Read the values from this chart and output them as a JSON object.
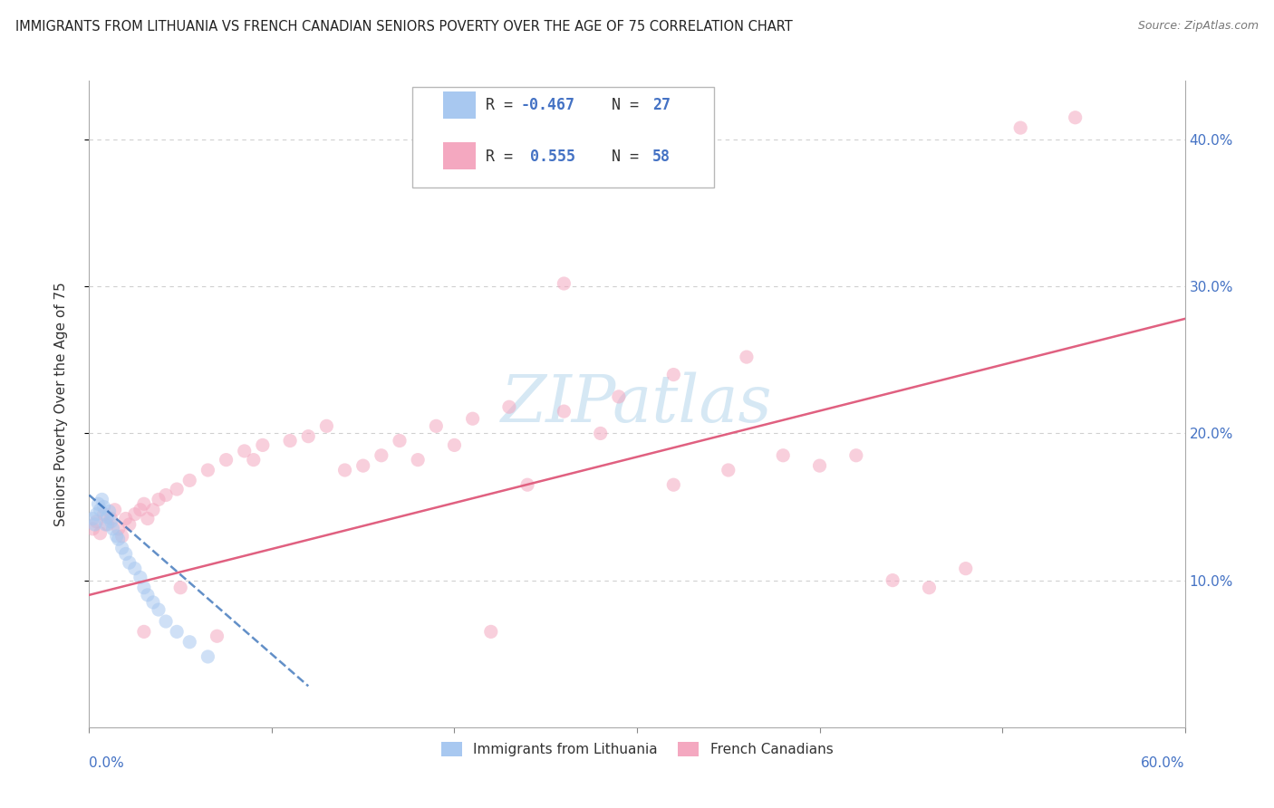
{
  "title": "IMMIGRANTS FROM LITHUANIA VS FRENCH CANADIAN SENIORS POVERTY OVER THE AGE OF 75 CORRELATION CHART",
  "source": "Source: ZipAtlas.com",
  "ylabel": "Seniors Poverty Over the Age of 75",
  "xmin": 0.0,
  "xmax": 0.6,
  "ymin": 0.0,
  "ymax": 0.44,
  "legend1_color": "#a8c8f0",
  "legend2_color": "#f4a8c0",
  "legend1_label": "R = -0.467  N = 27",
  "legend2_label": "R =  0.555  N = 58",
  "blue_scatter_x": [
    0.002,
    0.003,
    0.004,
    0.005,
    0.006,
    0.007,
    0.008,
    0.009,
    0.01,
    0.011,
    0.012,
    0.013,
    0.015,
    0.016,
    0.018,
    0.02,
    0.022,
    0.025,
    0.028,
    0.03,
    0.032,
    0.035,
    0.038,
    0.042,
    0.048,
    0.055,
    0.065
  ],
  "blue_scatter_y": [
    0.142,
    0.138,
    0.145,
    0.152,
    0.148,
    0.155,
    0.15,
    0.138,
    0.143,
    0.147,
    0.14,
    0.135,
    0.13,
    0.128,
    0.122,
    0.118,
    0.112,
    0.108,
    0.102,
    0.095,
    0.09,
    0.085,
    0.08,
    0.072,
    0.065,
    0.058,
    0.048
  ],
  "pink_scatter_x": [
    0.002,
    0.004,
    0.006,
    0.008,
    0.01,
    0.012,
    0.014,
    0.016,
    0.018,
    0.02,
    0.022,
    0.025,
    0.028,
    0.03,
    0.032,
    0.035,
    0.038,
    0.042,
    0.048,
    0.055,
    0.065,
    0.075,
    0.085,
    0.095,
    0.11,
    0.13,
    0.15,
    0.17,
    0.19,
    0.21,
    0.23,
    0.26,
    0.29,
    0.32,
    0.35,
    0.38,
    0.42,
    0.46,
    0.51,
    0.54,
    0.12,
    0.14,
    0.16,
    0.2,
    0.24,
    0.28,
    0.32,
    0.36,
    0.03,
    0.05,
    0.07,
    0.09,
    0.22,
    0.26,
    0.18,
    0.4,
    0.44,
    0.48
  ],
  "pink_scatter_y": [
    0.135,
    0.14,
    0.132,
    0.145,
    0.138,
    0.142,
    0.148,
    0.135,
    0.13,
    0.142,
    0.138,
    0.145,
    0.148,
    0.152,
    0.142,
    0.148,
    0.155,
    0.158,
    0.162,
    0.168,
    0.175,
    0.182,
    0.188,
    0.192,
    0.195,
    0.205,
    0.178,
    0.195,
    0.205,
    0.21,
    0.218,
    0.215,
    0.225,
    0.165,
    0.175,
    0.185,
    0.185,
    0.095,
    0.408,
    0.415,
    0.198,
    0.175,
    0.185,
    0.192,
    0.165,
    0.2,
    0.24,
    0.252,
    0.065,
    0.095,
    0.062,
    0.182,
    0.065,
    0.302,
    0.182,
    0.178,
    0.1,
    0.108
  ],
  "blue_line_x0": 0.0,
  "blue_line_y0": 0.158,
  "blue_line_x1": 0.12,
  "blue_line_y1": 0.028,
  "pink_line_x0": 0.0,
  "pink_line_y0": 0.09,
  "pink_line_x1": 0.6,
  "pink_line_y1": 0.278,
  "watermark_text": "ZIPatlas",
  "watermark_color": "#c5dff0",
  "background_color": "#ffffff",
  "grid_color": "#d0d0d0",
  "title_fontsize": 10.5,
  "source_fontsize": 9,
  "scatter_size": 120,
  "scatter_alpha": 0.55,
  "axis_label_color": "#4472c4",
  "text_color": "#333333"
}
